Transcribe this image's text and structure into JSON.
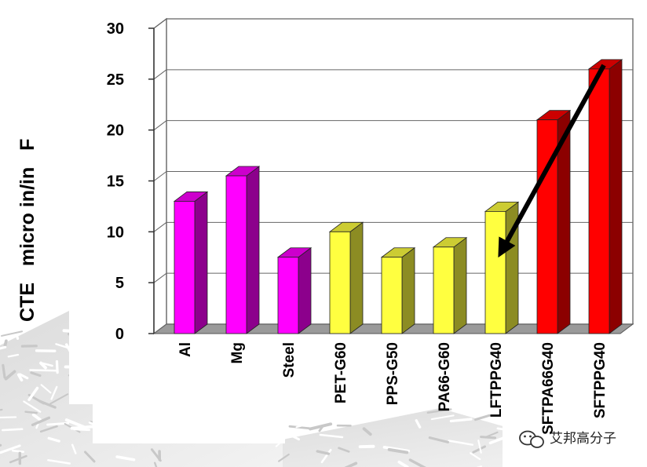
{
  "chart_data": {
    "type": "bar",
    "ylabel": "CTE   micro in/in   F",
    "ylim": [
      0,
      30
    ],
    "yticks": [
      0,
      5,
      10,
      15,
      20,
      25,
      30
    ],
    "grid": true,
    "bar_style": "3d",
    "categories": [
      "Al",
      "Mg",
      "Steel",
      "PET-G60",
      "PPS-G50",
      "PA66-G60",
      "LFTPPG40",
      "SFTPA66G40",
      "SFTPPG40"
    ],
    "values": [
      13,
      15.5,
      7.5,
      10,
      7.5,
      8.5,
      12,
      21,
      26
    ],
    "bar_colors": [
      "#ff00ff",
      "#ff00ff",
      "#ff00ff",
      "#ffff40",
      "#ffff40",
      "#ffff40",
      "#ffff40",
      "#ff0000",
      "#ff0000"
    ],
    "annotations": [
      {
        "type": "arrow",
        "from_category": "SFTPPG40",
        "from_value": 26,
        "to_category": "LFTPPG40",
        "to_value": 7.5
      }
    ]
  },
  "watermark": {
    "text": "艾邦高分子",
    "icon": "wechat-icon"
  }
}
